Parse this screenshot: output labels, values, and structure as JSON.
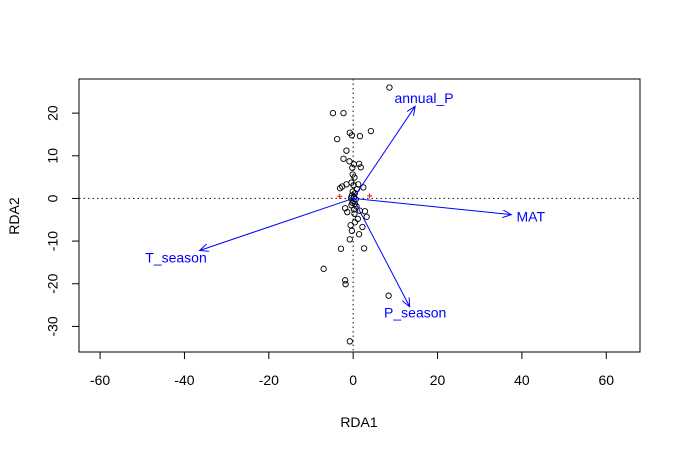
{
  "chart_data": {
    "type": "scatter",
    "title": "",
    "xlabel": "RDA1",
    "ylabel": "RDA2",
    "xlim": [
      -65,
      68
    ],
    "ylim": [
      -36,
      28
    ],
    "xticks": [
      -60,
      -40,
      -20,
      0,
      20,
      40,
      60
    ],
    "yticks": [
      -30,
      -20,
      -10,
      0,
      10,
      20
    ],
    "reference_lines": {
      "x": 0,
      "y": 0,
      "style": "dotted"
    },
    "colors": {
      "points": "#000000",
      "arrows": "#0000ff",
      "centroids": "#ff0000"
    },
    "points": [
      [
        8.6,
        26
      ],
      [
        -4.8,
        20
      ],
      [
        -2.3,
        20
      ],
      [
        4.2,
        15.8
      ],
      [
        -0.8,
        15.4
      ],
      [
        -0.3,
        14.8
      ],
      [
        1.6,
        14.6
      ],
      [
        -3.8,
        13.9
      ],
      [
        -1.6,
        11.2
      ],
      [
        -2.3,
        9.3
      ],
      [
        -0.9,
        8.7
      ],
      [
        0.2,
        8.0
      ],
      [
        1.4,
        8.1
      ],
      [
        1.8,
        7.3
      ],
      [
        -0.2,
        7.2
      ],
      [
        -0.1,
        5.6
      ],
      [
        0.3,
        4.9
      ],
      [
        -0.4,
        3.7
      ],
      [
        0.1,
        3.1
      ],
      [
        -1.6,
        3.3
      ],
      [
        -2.6,
        2.8
      ],
      [
        -3.1,
        2.4
      ],
      [
        1.2,
        3.3
      ],
      [
        2.4,
        2.6
      ],
      [
        0.9,
        2.2
      ],
      [
        -0.1,
        1.6
      ],
      [
        0.4,
        1.2
      ],
      [
        -0.3,
        0.7
      ],
      [
        0.2,
        0.3
      ],
      [
        -0.5,
        0.1
      ],
      [
        0.6,
        -0.2
      ],
      [
        0.1,
        -0.6
      ],
      [
        -0.2,
        -1.0
      ],
      [
        0.4,
        -1.3
      ],
      [
        -0.4,
        -1.6
      ],
      [
        0.8,
        -1.9
      ],
      [
        -1.9,
        -2.3
      ],
      [
        0.2,
        -2.6
      ],
      [
        -1.4,
        -3.2
      ],
      [
        1.6,
        -2.9
      ],
      [
        2.8,
        -3.0
      ],
      [
        0.3,
        -3.6
      ],
      [
        3.2,
        -4.3
      ],
      [
        1.1,
        -4.8
      ],
      [
        0.4,
        -5.6
      ],
      [
        -0.6,
        -6.3
      ],
      [
        2.2,
        -6.7
      ],
      [
        -0.3,
        -7.6
      ],
      [
        1.4,
        -8.4
      ],
      [
        -0.8,
        -9.6
      ],
      [
        2.6,
        -11.7
      ],
      [
        -2.9,
        -11.8
      ],
      [
        -7.0,
        -16.5
      ],
      [
        -1.9,
        -19.2
      ],
      [
        -1.8,
        -20.1
      ],
      [
        8.4,
        -22.8
      ],
      [
        -0.8,
        -33.5
      ]
    ],
    "arrows": [
      {
        "label": "annual_P",
        "x": 14.7,
        "y": 21.6,
        "label_x": 16.8,
        "label_y": 23.3
      },
      {
        "label": "MAT",
        "x": 37.5,
        "y": -3.8,
        "label_x": 42.1,
        "label_y": -4.5
      },
      {
        "label": "T_season",
        "x": -36.4,
        "y": -12.2,
        "label_x": -42.0,
        "label_y": -14.1
      },
      {
        "label": "P_season",
        "x": 13.4,
        "y": -25.4,
        "label_x": 14.7,
        "label_y": -27.1
      }
    ],
    "centroids": [
      [
        -3.2,
        0.5
      ],
      [
        3.9,
        0.6
      ]
    ]
  }
}
